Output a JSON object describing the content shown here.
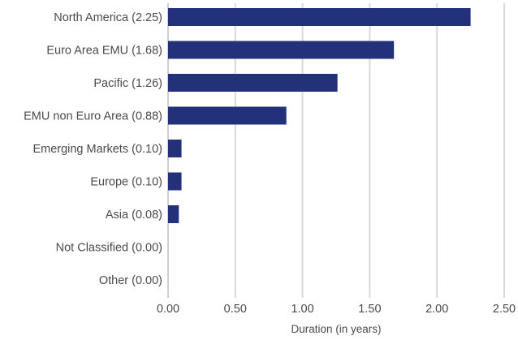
{
  "chart_data": {
    "type": "bar",
    "orientation": "horizontal",
    "categories": [
      "North America (2.25)",
      "Euro Area EMU (1.68)",
      "Pacific (1.26)",
      "EMU non Euro Area (0.88)",
      "Emerging Markets (0.10)",
      "Europe (0.10)",
      "Asia (0.08)",
      "Not Classified (0.00)",
      "Other (0.00)"
    ],
    "values": [
      2.25,
      1.68,
      1.26,
      0.88,
      0.1,
      0.1,
      0.08,
      0.0,
      0.0
    ],
    "xlabel": "Duration (in years)",
    "ylabel": "",
    "xlim": [
      0,
      2.5
    ],
    "xticks": [
      "0.00",
      "0.50",
      "1.00",
      "1.50",
      "2.00",
      "2.50"
    ],
    "xtick_values": [
      0,
      0.5,
      1.0,
      1.5,
      2.0,
      2.5
    ],
    "grid": true,
    "bar_color": "#22317a",
    "grid_color": "#d9d9d9"
  }
}
